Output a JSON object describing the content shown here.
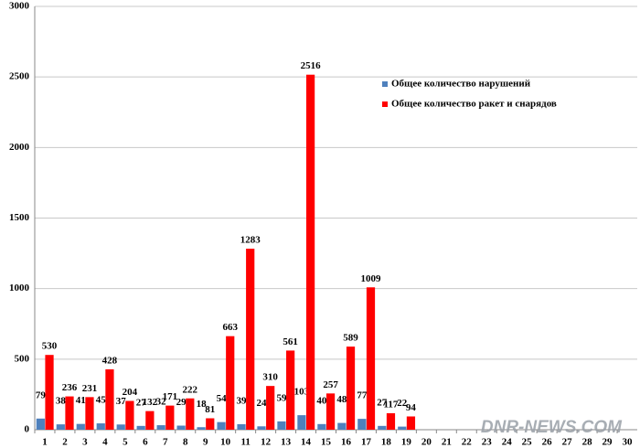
{
  "chart_data": {
    "type": "bar",
    "categories": [
      "1",
      "2",
      "3",
      "4",
      "5",
      "6",
      "7",
      "8",
      "9",
      "10",
      "11",
      "12",
      "13",
      "14",
      "15",
      "16",
      "17",
      "18",
      "19",
      "20",
      "21",
      "22",
      "23",
      "24",
      "25",
      "26",
      "27",
      "28",
      "29",
      "30"
    ],
    "series": [
      {
        "name": "Общее количество нарушений",
        "color": "#4f81bd",
        "values": [
          79,
          38,
          41,
          45,
          37,
          27,
          32,
          29,
          18,
          54,
          39,
          24,
          59,
          103,
          40,
          48,
          77,
          27,
          22,
          null,
          null,
          null,
          null,
          null,
          null,
          null,
          null,
          null,
          null,
          null
        ]
      },
      {
        "name": "Общее количество ракет и снарядов",
        "color": "#ff0000",
        "values": [
          530,
          236,
          231,
          428,
          204,
          132,
          171,
          222,
          81,
          663,
          1283,
          310,
          561,
          2516,
          257,
          589,
          1009,
          117,
          94,
          null,
          null,
          null,
          null,
          null,
          null,
          null,
          null,
          null,
          null,
          null
        ]
      }
    ],
    "ylim": [
      0,
      3000
    ],
    "yticks": [
      0,
      500,
      1000,
      1500,
      2000,
      2500,
      3000
    ],
    "grid": true,
    "legend": "upper-right",
    "watermark": "DNR-NEWS.COM"
  }
}
